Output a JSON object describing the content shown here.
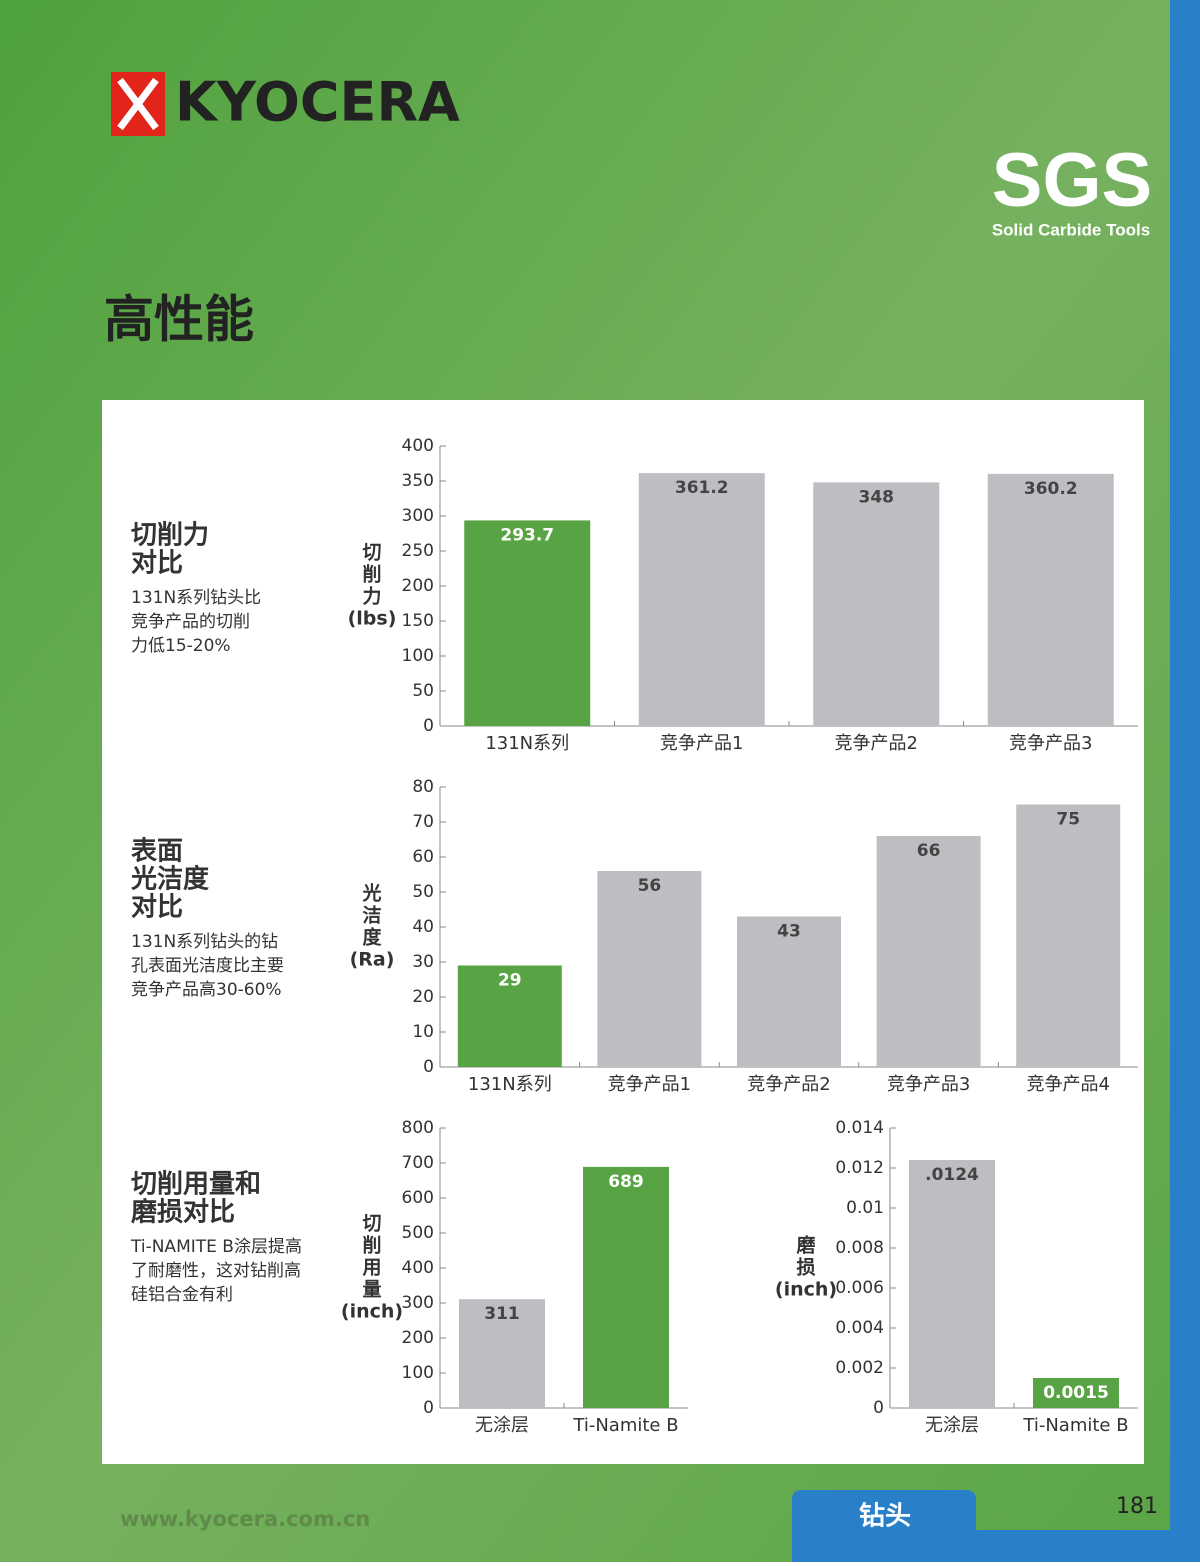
{
  "header": {
    "logo": "KYOCERA",
    "brand": "SGS",
    "brand_sub": "Solid Carbide Tools",
    "title": "高性能"
  },
  "sections": [
    {
      "title": [
        "切削力",
        "对比"
      ],
      "text": [
        "131N系列钻头比",
        "竞争产品的切削",
        "力低15-20%"
      ]
    },
    {
      "title": [
        "表面",
        "光洁度",
        "对比"
      ],
      "text": [
        "131N系列钻头的钻",
        "孔表面光洁度比主要",
        "竞争产品高30-60%"
      ]
    },
    {
      "title": [
        "切削用量和",
        "磨损对比"
      ],
      "text": [
        "Ti-NAMITE B涂层提高",
        "了耐磨性，这对钻削高",
        "硅铝合金有利"
      ]
    }
  ],
  "chart_data": [
    {
      "type": "bar",
      "ylabel": [
        "切",
        "削",
        "力",
        "(lbs)"
      ],
      "categories": [
        "131N系列",
        "竞争产品1",
        "竞争产品2",
        "竞争产品3"
      ],
      "values": [
        293.7,
        361.2,
        348,
        360.2
      ],
      "colors": [
        "#58a444",
        "#bdbec1",
        "#bdbec1",
        "#bdbec1"
      ],
      "ylim": [
        0,
        400
      ],
      "yticks": [
        0,
        50,
        100,
        150,
        200,
        250,
        300,
        350,
        400
      ]
    },
    {
      "type": "bar",
      "ylabel": [
        "光",
        "洁",
        "度",
        "(Ra)"
      ],
      "categories": [
        "131N系列",
        "竞争产品1",
        "竞争产品2",
        "竞争产品3",
        "竞争产品4"
      ],
      "values": [
        29,
        56,
        43,
        66,
        75
      ],
      "colors": [
        "#58a444",
        "#bdbec1",
        "#bdbec1",
        "#bdbec1",
        "#bdbec1"
      ],
      "ylim": [
        0,
        80
      ],
      "yticks": [
        0,
        10,
        20,
        30,
        40,
        50,
        60,
        70,
        80
      ]
    },
    {
      "type": "bar",
      "ylabel": [
        "切",
        "削",
        "用",
        "量",
        "(inch)"
      ],
      "categories": [
        "无涂层",
        "Ti-Namite B"
      ],
      "values": [
        311,
        689
      ],
      "colors": [
        "#bdbec1",
        "#58a444"
      ],
      "ylim": [
        0,
        800
      ],
      "yticks": [
        0,
        100,
        200,
        300,
        400,
        500,
        600,
        700,
        800
      ]
    },
    {
      "type": "bar",
      "ylabel": [
        "磨",
        "损",
        "(inch)"
      ],
      "categories": [
        "无涂层",
        "Ti-Namite B"
      ],
      "values": [
        0.0124,
        0.0015
      ],
      "value_labels": [
        ".0124",
        "0.0015"
      ],
      "colors": [
        "#bdbec1",
        "#58a444"
      ],
      "ylim": [
        0,
        0.014
      ],
      "yticks": [
        0,
        0.002,
        0.004,
        0.006,
        0.008,
        0.01,
        0.012,
        0.014
      ]
    }
  ],
  "footer": {
    "url": "www.kyocera.com.cn",
    "tab": "钻头",
    "page": "181"
  }
}
